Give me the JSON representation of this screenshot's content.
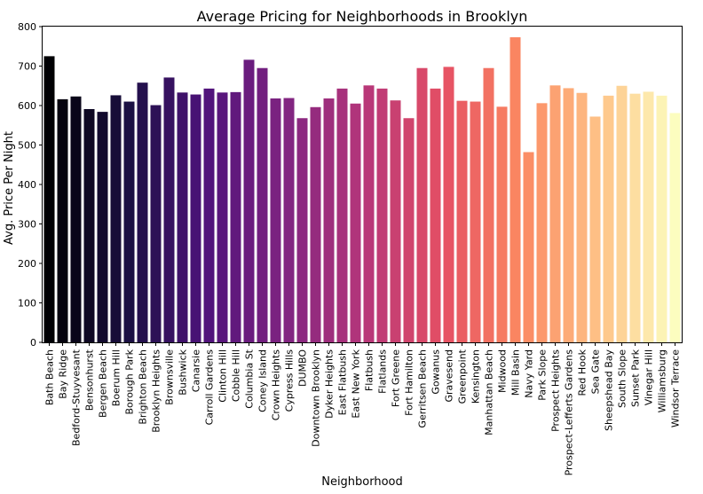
{
  "chart_data": {
    "type": "bar",
    "title": "Average Pricing for Neighborhoods in Brooklyn",
    "xlabel": "Neighborhood",
    "ylabel": "Avg. Price Per Night",
    "ylim": [
      0,
      800
    ],
    "yticks": [
      0,
      100,
      200,
      300,
      400,
      500,
      600,
      700,
      800
    ],
    "grid": false,
    "palette": "magma",
    "categories": [
      "Bath Beach",
      "Bay Ridge",
      "Bedford-Stuyvesant",
      "Bensonhurst",
      "Bergen Beach",
      "Boerum Hill",
      "Borough Park",
      "Brighton Beach",
      "Brooklyn Heights",
      "Brownsville",
      "Bushwick",
      "Canarsie",
      "Carroll Gardens",
      "Clinton Hill",
      "Cobble Hill",
      "Columbia St",
      "Coney Island",
      "Crown Heights",
      "Cypress Hills",
      "DUMBO",
      "Downtown Brooklyn",
      "Dyker Heights",
      "East Flatbush",
      "East New York",
      "Flatbush",
      "Flatlands",
      "Fort Greene",
      "Fort Hamilton",
      "Gerritsen Beach",
      "Gowanus",
      "Gravesend",
      "Greenpoint",
      "Kensington",
      "Manhattan Beach",
      "Midwood",
      "Mill Basin",
      "Navy Yard",
      "Park Slope",
      "Prospect Heights",
      "Prospect-Lefferts Gardens",
      "Red Hook",
      "Sea Gate",
      "Sheepshead Bay",
      "South Slope",
      "Sunset Park",
      "Vinegar Hill",
      "Williamsburg",
      "Windsor Terrace"
    ],
    "values": [
      725,
      616,
      623,
      591,
      584,
      626,
      610,
      658,
      601,
      671,
      633,
      628,
      643,
      633,
      634,
      716,
      695,
      618,
      619,
      568,
      596,
      618,
      643,
      605,
      651,
      643,
      613,
      568,
      695,
      643,
      698,
      612,
      610,
      695,
      597,
      773,
      482,
      606,
      651,
      644,
      632,
      572,
      625,
      650,
      630,
      635,
      625,
      581
    ]
  }
}
